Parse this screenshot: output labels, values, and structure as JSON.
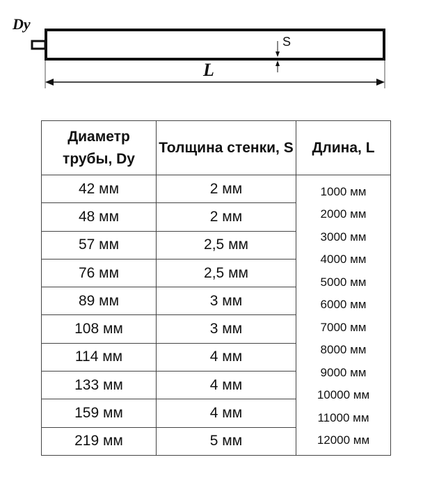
{
  "diagram": {
    "dy_label": "Dy",
    "s_label": "S",
    "l_label": "L"
  },
  "table": {
    "headers": {
      "diameter": "Диаметр трубы, Dy",
      "thickness": "Толщина стенки, S",
      "length": "Длина, L"
    },
    "rows": [
      {
        "diameter": "42 мм",
        "thickness": "2 мм"
      },
      {
        "diameter": "48 мм",
        "thickness": "2 мм"
      },
      {
        "diameter": "57 мм",
        "thickness": "2,5 мм"
      },
      {
        "diameter": "76 мм",
        "thickness": "2,5 мм"
      },
      {
        "diameter": "89 мм",
        "thickness": "3 мм"
      },
      {
        "diameter": "108 мм",
        "thickness": "3 мм"
      },
      {
        "diameter": "114 мм",
        "thickness": "4 мм"
      },
      {
        "diameter": "133 мм",
        "thickness": "4 мм"
      },
      {
        "diameter": "159 мм",
        "thickness": "4 мм"
      },
      {
        "diameter": "219 мм",
        "thickness": "5 мм"
      }
    ],
    "lengths": [
      "1000 мм",
      "2000 мм",
      "3000 мм",
      "4000 мм",
      "5000 мм",
      "6000 мм",
      "7000 мм",
      "8000 мм",
      "9000 мм",
      "10000 мм",
      "11000 мм",
      "12000 мм"
    ]
  }
}
